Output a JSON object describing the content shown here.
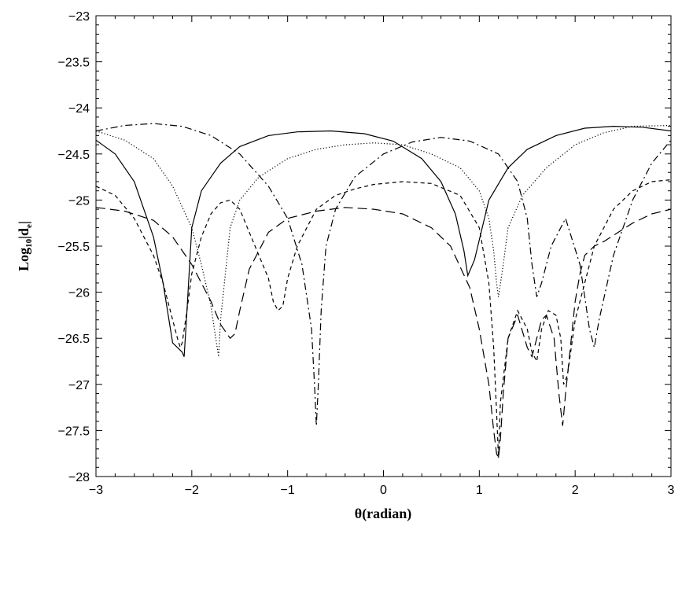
{
  "chart_data": {
    "type": "line",
    "title": "",
    "xlabel": "θ(radian)",
    "ylabel": "Log10|de|",
    "ylabel_parts": {
      "main": "Log",
      "base": "10",
      "bar_open": "|d",
      "subscript": "e",
      "bar_close": "|"
    },
    "xlim": [
      -3,
      3
    ],
    "ylim": [
      -28,
      -23
    ],
    "xticks": [
      -3,
      -2,
      -1,
      0,
      1,
      2,
      3
    ],
    "yticks": [
      -28,
      -27.5,
      -27,
      -26.5,
      -26,
      -25.5,
      -25,
      -24.5,
      -24,
      -23.5,
      -23
    ],
    "xtick_labels": [
      "−3",
      "−2",
      "−1",
      "0",
      "1",
      "2",
      "3"
    ],
    "ytick_labels": [
      "−28",
      "−27.5",
      "−27",
      "−26.5",
      "−26",
      "−25.5",
      "−25",
      "−24.5",
      "−24",
      "−23.5",
      "−23"
    ],
    "grid": false,
    "legend": "none",
    "series": [
      {
        "style": "solid",
        "x": [
          -3.0,
          -2.8,
          -2.6,
          -2.4,
          -2.3,
          -2.2,
          -2.15,
          -2.1,
          -2.08,
          -2.05,
          -2.0,
          -1.9,
          -1.7,
          -1.5,
          -1.2,
          -0.9,
          -0.55,
          -0.2,
          0.1,
          0.4,
          0.6,
          0.75,
          0.84,
          0.88,
          0.95,
          1.1,
          1.3,
          1.5,
          1.8,
          2.1,
          2.4,
          2.7,
          3.0
        ],
        "y": [
          -24.35,
          -24.5,
          -24.8,
          -25.4,
          -25.9,
          -26.55,
          -26.6,
          -26.65,
          -26.7,
          -26.2,
          -25.3,
          -24.9,
          -24.6,
          -24.42,
          -24.3,
          -24.26,
          -24.25,
          -24.28,
          -24.36,
          -24.55,
          -24.8,
          -25.15,
          -25.55,
          -25.82,
          -25.65,
          -25.0,
          -24.65,
          -24.45,
          -24.3,
          -24.22,
          -24.2,
          -24.21,
          -24.25
        ]
      },
      {
        "style": "dotted",
        "x": [
          -3.0,
          -2.7,
          -2.4,
          -2.2,
          -2.0,
          -1.9,
          -1.8,
          -1.75,
          -1.72,
          -1.7,
          -1.65,
          -1.6,
          -1.5,
          -1.3,
          -1.0,
          -0.7,
          -0.4,
          -0.1,
          0.2,
          0.5,
          0.8,
          1.0,
          1.1,
          1.15,
          1.18,
          1.2,
          1.25,
          1.3,
          1.45,
          1.7,
          2.0,
          2.3,
          2.6,
          3.0
        ],
        "y": [
          -24.25,
          -24.35,
          -24.55,
          -24.85,
          -25.3,
          -25.7,
          -26.15,
          -26.5,
          -26.7,
          -26.3,
          -25.8,
          -25.3,
          -25.0,
          -24.75,
          -24.55,
          -24.45,
          -24.4,
          -24.38,
          -24.4,
          -24.5,
          -24.65,
          -24.9,
          -25.2,
          -25.55,
          -25.9,
          -26.05,
          -25.7,
          -25.3,
          -24.95,
          -24.65,
          -24.4,
          -24.27,
          -24.2,
          -24.19
        ]
      },
      {
        "style": "dash-dot",
        "x": [
          -3.0,
          -2.7,
          -2.4,
          -2.1,
          -1.8,
          -1.5,
          -1.2,
          -1.0,
          -0.85,
          -0.75,
          -0.72,
          -0.7,
          -0.68,
          -0.65,
          -0.6,
          -0.5,
          -0.3,
          0.0,
          0.3,
          0.6,
          0.9,
          1.2,
          1.4,
          1.5,
          1.55,
          1.6,
          1.65,
          1.75,
          1.9,
          2.05,
          2.15,
          2.2,
          2.25,
          2.4,
          2.6,
          2.8,
          3.0
        ],
        "y": [
          -24.25,
          -24.19,
          -24.17,
          -24.2,
          -24.3,
          -24.5,
          -24.85,
          -25.2,
          -25.7,
          -26.4,
          -27.0,
          -27.45,
          -27.0,
          -26.2,
          -25.5,
          -25.1,
          -24.75,
          -24.5,
          -24.37,
          -24.32,
          -24.36,
          -24.5,
          -24.8,
          -25.2,
          -25.7,
          -26.05,
          -25.9,
          -25.5,
          -25.2,
          -25.7,
          -26.4,
          -26.6,
          -26.3,
          -25.6,
          -25.0,
          -24.6,
          -24.35
        ]
      },
      {
        "style": "short-dash",
        "x": [
          -3.0,
          -2.8,
          -2.6,
          -2.4,
          -2.3,
          -2.2,
          -2.15,
          -2.12,
          -2.1,
          -2.05,
          -2.0,
          -1.9,
          -1.8,
          -1.7,
          -1.6,
          -1.5,
          -1.4,
          -1.3,
          -1.2,
          -1.15,
          -1.1,
          -1.05,
          -1.0,
          -0.9,
          -0.7,
          -0.5,
          -0.3,
          -0.1,
          0.2,
          0.5,
          0.8,
          1.0,
          1.1,
          1.15,
          1.18,
          1.2,
          1.22,
          1.3,
          1.4,
          1.5,
          1.55,
          1.6,
          1.65,
          1.72,
          1.8,
          1.85,
          1.88,
          1.92,
          2.0,
          2.2,
          2.4,
          2.6,
          2.8,
          3.0
        ],
        "y": [
          -24.85,
          -24.95,
          -25.2,
          -25.6,
          -25.9,
          -26.3,
          -26.5,
          -26.6,
          -26.55,
          -26.2,
          -25.8,
          -25.4,
          -25.15,
          -25.03,
          -25.0,
          -25.1,
          -25.35,
          -25.6,
          -25.85,
          -26.1,
          -26.2,
          -26.15,
          -25.85,
          -25.5,
          -25.1,
          -24.95,
          -24.88,
          -24.83,
          -24.8,
          -24.82,
          -24.95,
          -25.3,
          -25.9,
          -26.6,
          -27.3,
          -27.8,
          -27.2,
          -26.5,
          -26.2,
          -26.4,
          -26.65,
          -26.75,
          -26.4,
          -26.2,
          -26.25,
          -26.5,
          -27.0,
          -26.9,
          -26.3,
          -25.5,
          -25.1,
          -24.9,
          -24.8,
          -24.78
        ]
      },
      {
        "style": "long-dash",
        "x": [
          -3.0,
          -2.7,
          -2.4,
          -2.2,
          -2.0,
          -1.8,
          -1.7,
          -1.6,
          -1.55,
          -1.5,
          -1.4,
          -1.2,
          -1.0,
          -0.7,
          -0.4,
          -0.1,
          0.2,
          0.5,
          0.7,
          0.9,
          1.0,
          1.1,
          1.15,
          1.18,
          1.2,
          1.22,
          1.25,
          1.3,
          1.4,
          1.5,
          1.55,
          1.6,
          1.65,
          1.7,
          1.78,
          1.83,
          1.87,
          1.9,
          1.95,
          2.0,
          2.05,
          2.1,
          2.15,
          2.2,
          2.3,
          2.45,
          2.6,
          2.8,
          3.0
        ],
        "y": [
          -25.08,
          -25.12,
          -25.22,
          -25.4,
          -25.7,
          -26.1,
          -26.35,
          -26.5,
          -26.45,
          -26.2,
          -25.75,
          -25.35,
          -25.2,
          -25.12,
          -25.08,
          -25.1,
          -25.15,
          -25.3,
          -25.5,
          -25.95,
          -26.4,
          -27.0,
          -27.5,
          -27.75,
          -27.8,
          -27.6,
          -27.1,
          -26.5,
          -26.25,
          -26.6,
          -26.7,
          -26.5,
          -26.3,
          -26.25,
          -26.5,
          -27.1,
          -27.45,
          -27.1,
          -26.6,
          -26.1,
          -25.8,
          -25.6,
          -25.55,
          -25.5,
          -25.45,
          -25.35,
          -25.25,
          -25.15,
          -25.1
        ]
      }
    ]
  }
}
